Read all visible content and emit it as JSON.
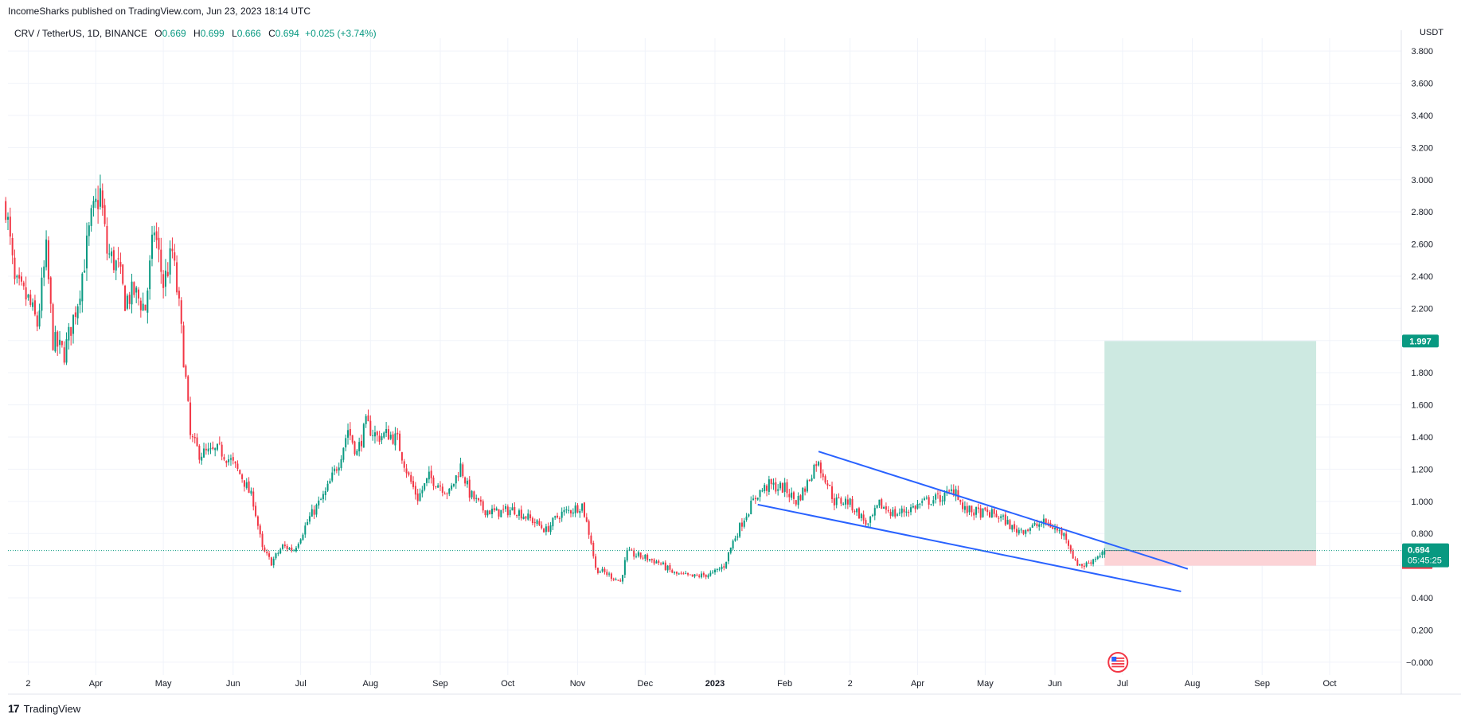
{
  "publisher": "IncomeSharks published on TradingView.com, Jun 23, 2023 18:14 UTC",
  "legend": {
    "symbol": "CRV / TetherUS, 1D, BINANCE",
    "open_label": "O",
    "open": "0.669",
    "high_label": "H",
    "high": "0.699",
    "low_label": "L",
    "low": "0.666",
    "close_label": "C",
    "close": "0.694",
    "change": "+0.025 (+3.74%)"
  },
  "unit": "USDT",
  "footer": {
    "brand": "TradingView",
    "logo": "17"
  },
  "colors": {
    "up": "#089981",
    "down": "#f23645",
    "trendline": "#2962ff",
    "target_zone": "#cde9e1",
    "stop_zone": "#fcd3d6"
  },
  "chart_data": {
    "type": "candlestick",
    "title": "CRV / TetherUS, 1D, BINANCE",
    "ylabel": "USDT",
    "ylim": [
      -0.08,
      3.88
    ],
    "y_ticks": [
      "−0.000",
      "0.200",
      "0.400",
      "0.600",
      "0.800",
      "1.000",
      "1.200",
      "1.400",
      "1.600",
      "1.800",
      "2.000",
      "2.200",
      "2.400",
      "2.600",
      "2.800",
      "3.000",
      "3.200",
      "3.400",
      "3.600",
      "3.800"
    ],
    "x_ticks": [
      {
        "label": "2",
        "date": "2022-03-02"
      },
      {
        "label": "Apr",
        "date": "2022-04-01"
      },
      {
        "label": "May",
        "date": "2022-05-01"
      },
      {
        "label": "Jun",
        "date": "2022-06-01"
      },
      {
        "label": "Jul",
        "date": "2022-07-01"
      },
      {
        "label": "Aug",
        "date": "2022-08-01"
      },
      {
        "label": "Sep",
        "date": "2022-09-01"
      },
      {
        "label": "Oct",
        "date": "2022-10-01"
      },
      {
        "label": "Nov",
        "date": "2022-11-01"
      },
      {
        "label": "Dec",
        "date": "2022-12-01"
      },
      {
        "label": "2023",
        "date": "2023-01-01"
      },
      {
        "label": "Feb",
        "date": "2023-02-01"
      },
      {
        "label": "2",
        "date": "2023-03-02"
      },
      {
        "label": "Apr",
        "date": "2023-04-01"
      },
      {
        "label": "May",
        "date": "2023-05-01"
      },
      {
        "label": "Jun",
        "date": "2023-06-01"
      },
      {
        "label": "Jul",
        "date": "2023-07-01"
      },
      {
        "label": "Aug",
        "date": "2023-08-01"
      },
      {
        "label": "Sep",
        "date": "2023-09-01"
      },
      {
        "label": "Oct",
        "date": "2023-10-01"
      }
    ],
    "price_path": [
      [
        "2022-02-20",
        2.85
      ],
      [
        "2022-02-24",
        2.35
      ],
      [
        "2022-03-02",
        2.25
      ],
      [
        "2022-03-06",
        2.1
      ],
      [
        "2022-03-10",
        2.55
      ],
      [
        "2022-03-13",
        2.0
      ],
      [
        "2022-03-18",
        1.92
      ],
      [
        "2022-03-24",
        2.25
      ],
      [
        "2022-03-30",
        2.75
      ],
      [
        "2022-04-03",
        2.92
      ],
      [
        "2022-04-06",
        2.55
      ],
      [
        "2022-04-11",
        2.45
      ],
      [
        "2022-04-14",
        2.25
      ],
      [
        "2022-04-18",
        2.3
      ],
      [
        "2022-04-23",
        2.2
      ],
      [
        "2022-04-27",
        2.7
      ],
      [
        "2022-05-01",
        2.35
      ],
      [
        "2022-05-05",
        2.55
      ],
      [
        "2022-05-08",
        2.2
      ],
      [
        "2022-05-11",
        1.75
      ],
      [
        "2022-05-13",
        1.4
      ],
      [
        "2022-05-17",
        1.3
      ],
      [
        "2022-05-22",
        1.3
      ],
      [
        "2022-05-26",
        1.32
      ],
      [
        "2022-05-31",
        1.25
      ],
      [
        "2022-06-05",
        1.15
      ],
      [
        "2022-06-10",
        1.0
      ],
      [
        "2022-06-14",
        0.7
      ],
      [
        "2022-06-18",
        0.62
      ],
      [
        "2022-06-23",
        0.72
      ],
      [
        "2022-06-28",
        0.7
      ],
      [
        "2022-07-05",
        0.9
      ],
      [
        "2022-07-12",
        1.05
      ],
      [
        "2022-07-18",
        1.25
      ],
      [
        "2022-07-22",
        1.45
      ],
      [
        "2022-07-26",
        1.3
      ],
      [
        "2022-07-30",
        1.48
      ],
      [
        "2022-08-04",
        1.4
      ],
      [
        "2022-08-09",
        1.42
      ],
      [
        "2022-08-13",
        1.38
      ],
      [
        "2022-08-18",
        1.15
      ],
      [
        "2022-08-22",
        1.02
      ],
      [
        "2022-08-27",
        1.15
      ],
      [
        "2022-09-01",
        1.1
      ],
      [
        "2022-09-05",
        1.05
      ],
      [
        "2022-09-10",
        1.22
      ],
      [
        "2022-09-14",
        1.05
      ],
      [
        "2022-09-20",
        0.95
      ],
      [
        "2022-09-26",
        0.93
      ],
      [
        "2022-10-04",
        0.95
      ],
      [
        "2022-10-12",
        0.88
      ],
      [
        "2022-10-18",
        0.82
      ],
      [
        "2022-10-24",
        0.92
      ],
      [
        "2022-10-30",
        0.95
      ],
      [
        "2022-11-03",
        0.98
      ],
      [
        "2022-11-07",
        0.75
      ],
      [
        "2022-11-09",
        0.58
      ],
      [
        "2022-11-14",
        0.55
      ],
      [
        "2022-11-20",
        0.5
      ],
      [
        "2022-11-23",
        0.68
      ],
      [
        "2022-12-01",
        0.65
      ],
      [
        "2022-12-07",
        0.62
      ],
      [
        "2022-12-14",
        0.55
      ],
      [
        "2022-12-22",
        0.53
      ],
      [
        "2022-12-31",
        0.55
      ],
      [
        "2023-01-05",
        0.6
      ],
      [
        "2023-01-09",
        0.75
      ],
      [
        "2023-01-14",
        0.9
      ],
      [
        "2023-01-20",
        1.05
      ],
      [
        "2023-01-25",
        1.1
      ],
      [
        "2023-02-01",
        1.08
      ],
      [
        "2023-02-06",
        1.0
      ],
      [
        "2023-02-10",
        1.08
      ],
      [
        "2023-02-15",
        1.25
      ],
      [
        "2023-02-19",
        1.15
      ],
      [
        "2023-02-23",
        1.0
      ],
      [
        "2023-03-01",
        1.0
      ],
      [
        "2023-03-06",
        0.92
      ],
      [
        "2023-03-10",
        0.85
      ],
      [
        "2023-03-15",
        0.98
      ],
      [
        "2023-03-22",
        0.92
      ],
      [
        "2023-03-28",
        0.95
      ],
      [
        "2023-04-05",
        1.0
      ],
      [
        "2023-04-13",
        1.03
      ],
      [
        "2023-04-18",
        1.08
      ],
      [
        "2023-04-21",
        0.95
      ],
      [
        "2023-04-28",
        0.93
      ],
      [
        "2023-05-05",
        0.92
      ],
      [
        "2023-05-10",
        0.88
      ],
      [
        "2023-05-14",
        0.82
      ],
      [
        "2023-05-20",
        0.83
      ],
      [
        "2023-05-28",
        0.87
      ],
      [
        "2023-06-02",
        0.82
      ],
      [
        "2023-06-06",
        0.78
      ],
      [
        "2023-06-10",
        0.62
      ],
      [
        "2023-06-14",
        0.6
      ],
      [
        "2023-06-18",
        0.64
      ],
      [
        "2023-06-23",
        0.694
      ]
    ],
    "trendlines": [
      {
        "name": "upper",
        "from": [
          "2023-02-16",
          1.31
        ],
        "to": [
          "2023-07-30",
          0.58
        ]
      },
      {
        "name": "lower",
        "from": [
          "2023-01-20",
          0.98
        ],
        "to": [
          "2023-07-27",
          0.44
        ]
      }
    ],
    "position": {
      "start": "2023-06-23",
      "end": "2023-09-25",
      "entry": 0.694,
      "target": 1.997,
      "stop": 0.6
    },
    "current_price": {
      "label": "0.694",
      "timer": "05:45:25"
    },
    "target_label": "1.997"
  }
}
